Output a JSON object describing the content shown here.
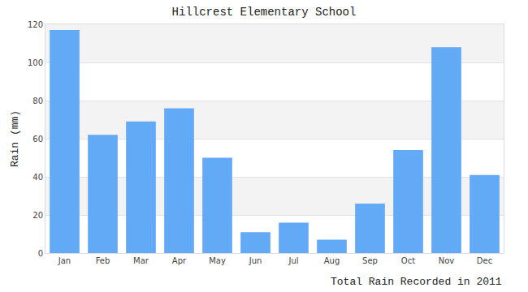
{
  "chart_data": {
    "type": "bar",
    "title": "Hillcrest Elementary School",
    "xlabel": "Total Rain Recorded in 2011",
    "ylabel": "Rain (mm)",
    "categories": [
      "Jan",
      "Feb",
      "Mar",
      "Apr",
      "May",
      "Jun",
      "Jul",
      "Aug",
      "Sep",
      "Oct",
      "Nov",
      "Dec"
    ],
    "values": [
      117,
      62,
      69,
      76,
      50,
      11,
      16,
      7,
      26,
      54,
      108,
      41
    ],
    "color": "#62a9f6",
    "ylim": [
      0,
      120
    ],
    "yticks": [
      0,
      20,
      40,
      60,
      80,
      100,
      120
    ],
    "grid": true
  }
}
